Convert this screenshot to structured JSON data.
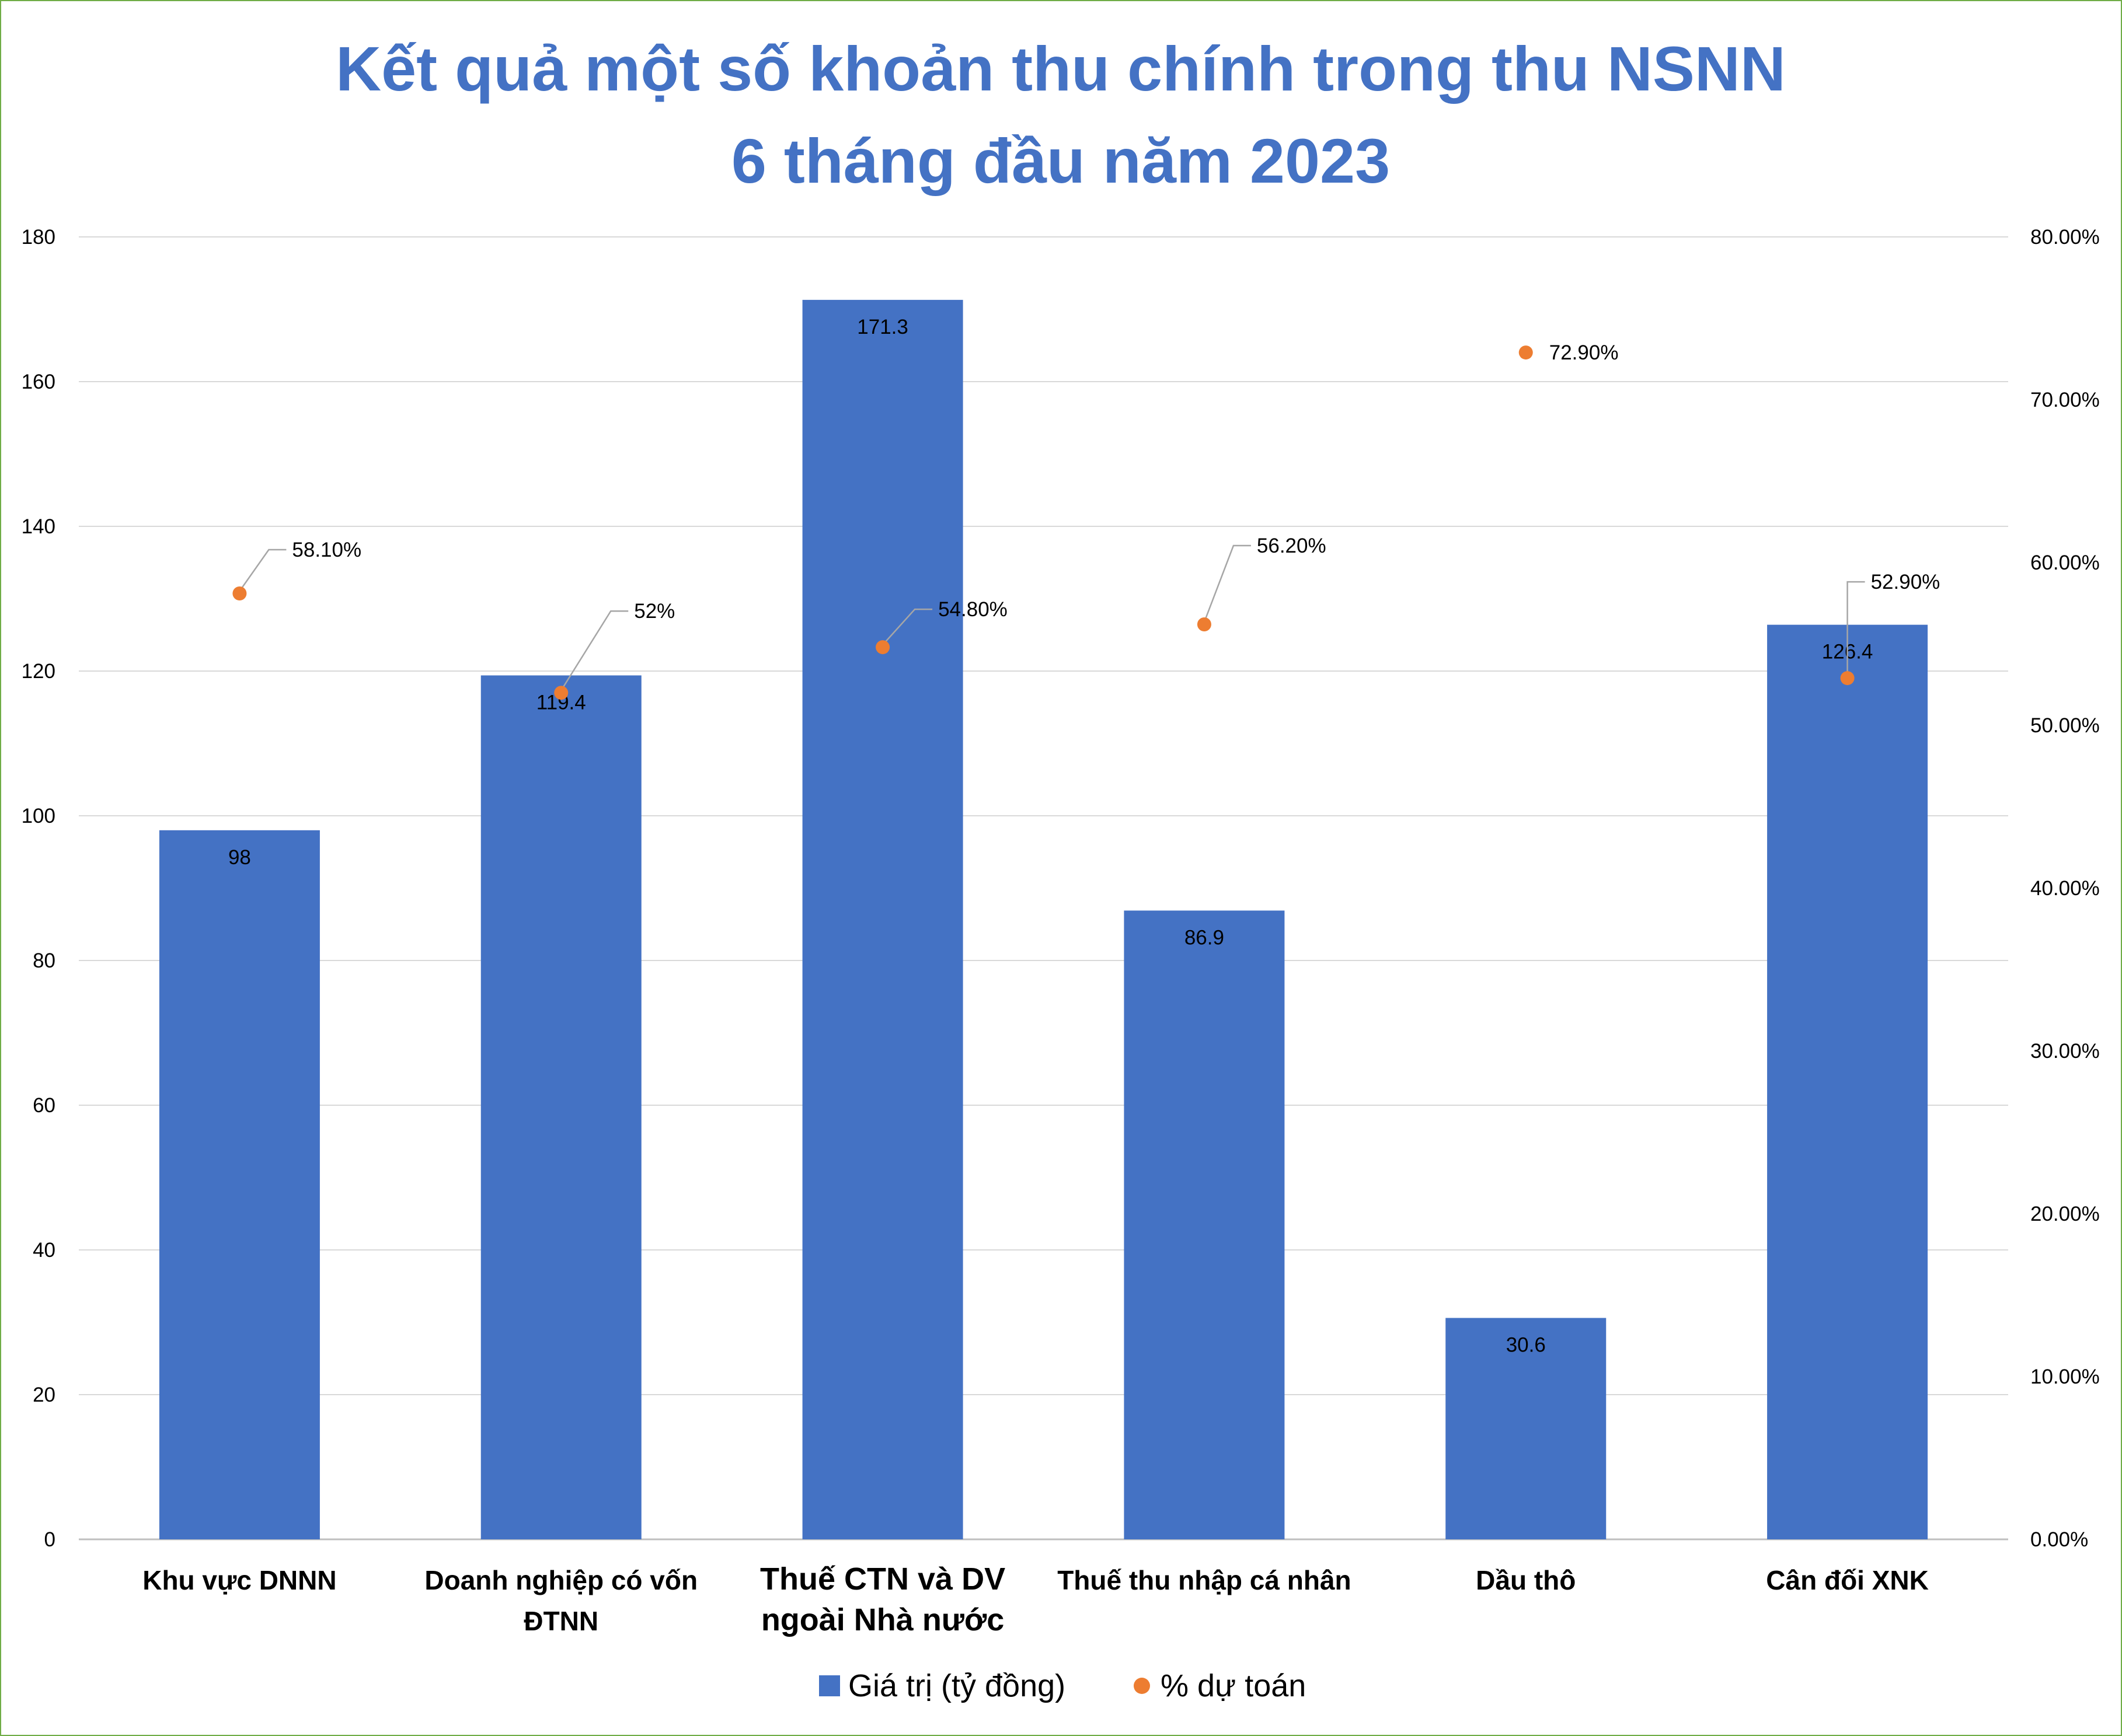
{
  "chart_data": {
    "type": "bar",
    "title": "Kết quả một số khoản thu chính trong  thu NSNN",
    "subtitle": "6 tháng đầu năm 2023",
    "categories": [
      [
        "Khu vực DNNN"
      ],
      [
        "Doanh nghiệp có vốn",
        "ĐTNN"
      ],
      [
        "Thuế CTN và DV",
        "ngoài Nhà nước"
      ],
      [
        "Thuế thu nhập cá nhân"
      ],
      [
        "Dầu thô"
      ],
      [
        "Cân đối XNK"
      ]
    ],
    "series": [
      {
        "name": "Giá trị (tỷ đồng)",
        "type": "bar",
        "axis": "left",
        "color": "#4472c4",
        "values": [
          98,
          119.4,
          171.3,
          86.9,
          30.6,
          126.4
        ],
        "labels": [
          "98",
          "119.4",
          "171.3",
          "86.9",
          "30.6",
          "126.4"
        ]
      },
      {
        "name": "% dự toán",
        "type": "scatter",
        "axis": "right",
        "color": "#ed7d31",
        "values": [
          58.1,
          52,
          54.8,
          56.2,
          72.9,
          52.9
        ],
        "labels": [
          "58.10%",
          "52%",
          "54.80%",
          "56.20%",
          "72.90%",
          "52.90%"
        ]
      }
    ],
    "ylim": [
      0,
      180
    ],
    "y_ticks": [
      "0",
      "20",
      "40",
      "60",
      "80",
      "100",
      "120",
      "140",
      "160",
      "180"
    ],
    "y2lim": [
      0,
      80
    ],
    "y2_ticks": [
      "0.00%",
      "10.00%",
      "20.00%",
      "30.00%",
      "40.00%",
      "50.00%",
      "60.00%",
      "70.00%",
      "80.00%"
    ],
    "grid": true,
    "legend_position": "bottom"
  }
}
